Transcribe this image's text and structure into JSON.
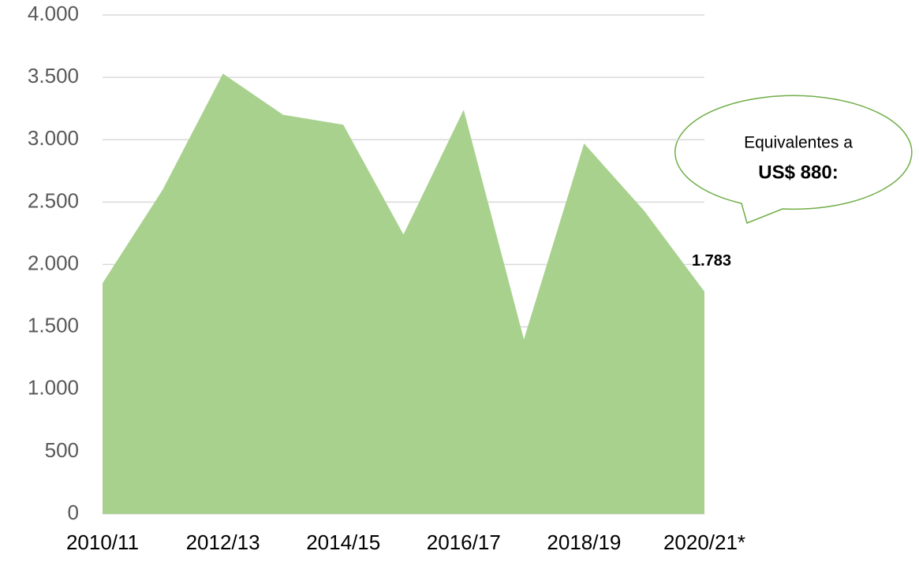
{
  "chart_data": {
    "type": "area",
    "categories": [
      "2010/11",
      null,
      "2012/13",
      null,
      "2014/15",
      null,
      "2016/17",
      null,
      "2018/19",
      null,
      "2020/21*"
    ],
    "values": [
      1850,
      2600,
      3530,
      3200,
      3120,
      2240,
      3240,
      1400,
      2970,
      2430,
      1783
    ],
    "value_labels": [
      null,
      null,
      null,
      null,
      null,
      null,
      null,
      null,
      null,
      null,
      "1.783"
    ],
    "color": "#a9d18e",
    "ylim": [
      0,
      4000
    ],
    "yticks": [
      0,
      500,
      {
        "value": 1000,
        "label": "1.000"
      },
      {
        "value": 1500,
        "label": "1.500"
      },
      {
        "value": 2000,
        "label": "2.000"
      },
      {
        "value": 2500,
        "label": "2.500"
      },
      {
        "value": 3000,
        "label": "3.000"
      },
      {
        "value": 3500,
        "label": "3.500"
      },
      {
        "value": 4000,
        "label": "4.000"
      }
    ],
    "grid": true,
    "annotations": [
      "Equivalentes a",
      "US$ 880:"
    ]
  }
}
